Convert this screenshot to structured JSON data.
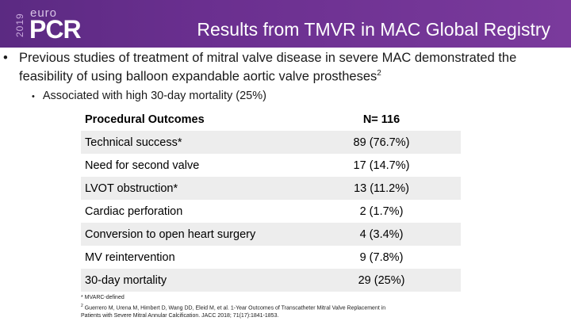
{
  "header": {
    "logo_year": "2019",
    "logo_top": "euro",
    "logo_main": "PCR",
    "title": "Results from TMVR in MAC Global Registry",
    "background_color": "#6a2f8f"
  },
  "bullets": {
    "main_text": "Previous studies of treatment of mitral valve disease in severe MAC demonstrated the feasibility of using balloon expandable aortic valve prostheses",
    "main_ref": "2",
    "sub_text": "Associated with high 30-day mortality (25%)"
  },
  "table": {
    "headers": [
      "Procedural Outcomes",
      "N= 116"
    ],
    "rows": [
      {
        "label": "Technical success*",
        "value": "89 (76.7%)"
      },
      {
        "label": "Need for second valve",
        "value": "17 (14.7%)"
      },
      {
        "label": "LVOT obstruction*",
        "value": "13 (11.2%)"
      },
      {
        "label": "Cardiac perforation",
        "value": "2 (1.7%)"
      },
      {
        "label": "Conversion to open heart surgery",
        "value": "4 (3.4%)"
      },
      {
        "label": "MV reintervention",
        "value": "9 (7.8%)"
      },
      {
        "label": "30-day mortality",
        "value": "29 (25%)"
      }
    ]
  },
  "footnotes": {
    "note1": "* MVARC-defined",
    "note2_ref": "2",
    "note2": "Guerrero M, Urena M, Himbert D, Wang DD, Eleid M, et al. 1-Year Outcomes of Transcatheter Mitral Valve Replacement in",
    "note2_cont": "Patients with Severe Mitral Annular Calcification. JACC 2018; 71(17):1841-1853."
  }
}
